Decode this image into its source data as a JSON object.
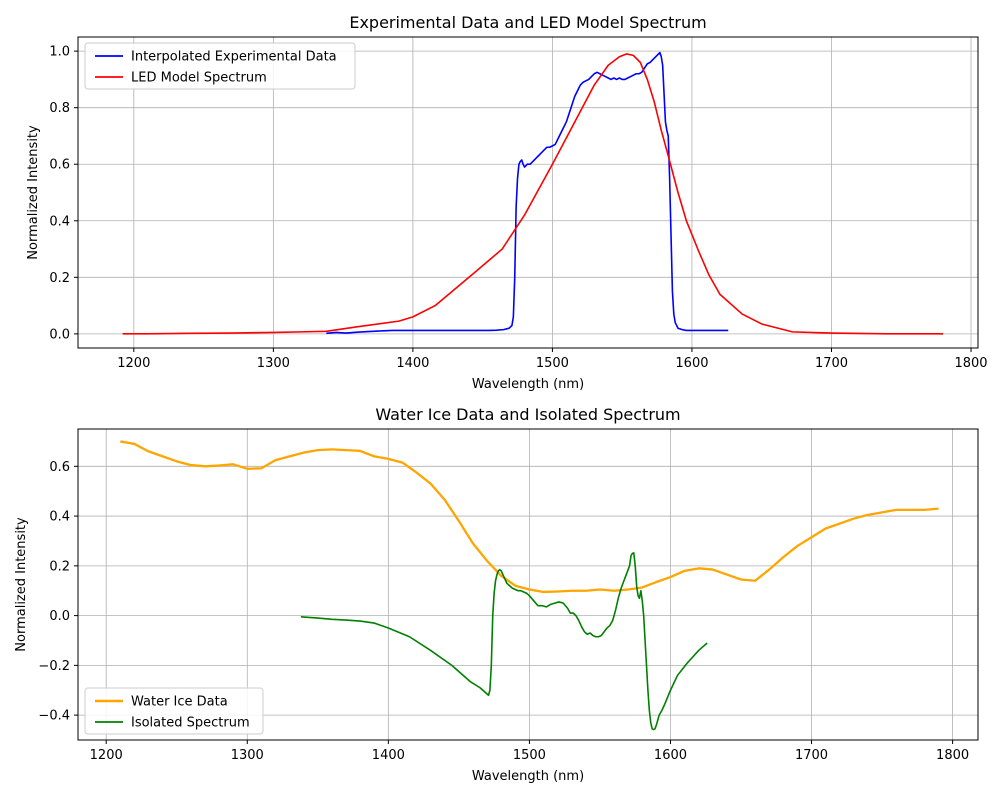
{
  "chart_data": [
    {
      "type": "line",
      "title": "Experimental Data and LED Model Spectrum",
      "xlabel": "Wavelength (nm)",
      "ylabel": "Normalized Intensity",
      "xlim": [
        1160,
        1805
      ],
      "ylim": [
        -0.05,
        1.05
      ],
      "xticks": [
        1200,
        1300,
        1400,
        1500,
        1600,
        1700,
        1800
      ],
      "yticks": [
        0.0,
        0.2,
        0.4,
        0.6,
        0.8,
        1.0
      ],
      "ytick_labels": [
        "0.0",
        "0.2",
        "0.4",
        "0.6",
        "0.8",
        "1.0"
      ],
      "grid": true,
      "legend_position": "upper-left",
      "series": [
        {
          "name": "Interpolated Experimental Data",
          "color": "#0000ff",
          "stroke_width": 1.6,
          "x": [
            1338,
            1345,
            1352,
            1360,
            1368,
            1375,
            1385,
            1400,
            1420,
            1440,
            1455,
            1460,
            1465,
            1469,
            1471,
            1472,
            1473,
            1474,
            1475,
            1476,
            1477,
            1478,
            1479,
            1480,
            1481,
            1482,
            1484,
            1486,
            1488,
            1490,
            1492,
            1494,
            1496,
            1498,
            1500,
            1502,
            1504,
            1506,
            1508,
            1510,
            1512,
            1514,
            1516,
            1518,
            1520,
            1522,
            1524,
            1526,
            1528,
            1530,
            1532,
            1534,
            1536,
            1538,
            1540,
            1542,
            1544,
            1546,
            1548,
            1550,
            1552,
            1554,
            1556,
            1558,
            1560,
            1562,
            1564,
            1566,
            1568,
            1570,
            1572,
            1574,
            1576,
            1577,
            1578,
            1579,
            1580,
            1581,
            1582,
            1583,
            1584,
            1585,
            1586,
            1587,
            1588,
            1590,
            1593,
            1596,
            1600,
            1610,
            1626
          ],
          "y": [
            0.002,
            0.005,
            0.003,
            0.006,
            0.008,
            0.01,
            0.012,
            0.012,
            0.012,
            0.012,
            0.012,
            0.013,
            0.015,
            0.02,
            0.03,
            0.06,
            0.2,
            0.45,
            0.55,
            0.6,
            0.61,
            0.615,
            0.6,
            0.59,
            0.595,
            0.6,
            0.6,
            0.61,
            0.62,
            0.63,
            0.64,
            0.65,
            0.66,
            0.66,
            0.665,
            0.67,
            0.69,
            0.71,
            0.73,
            0.75,
            0.78,
            0.81,
            0.84,
            0.86,
            0.88,
            0.89,
            0.895,
            0.9,
            0.91,
            0.92,
            0.925,
            0.92,
            0.915,
            0.91,
            0.905,
            0.9,
            0.905,
            0.9,
            0.905,
            0.9,
            0.9,
            0.905,
            0.91,
            0.915,
            0.92,
            0.92,
            0.925,
            0.94,
            0.955,
            0.96,
            0.97,
            0.98,
            0.99,
            0.995,
            0.98,
            0.95,
            0.85,
            0.75,
            0.72,
            0.7,
            0.55,
            0.35,
            0.15,
            0.07,
            0.04,
            0.02,
            0.015,
            0.012,
            0.012,
            0.012,
            0.012
          ]
        },
        {
          "name": "LED Model Spectrum",
          "color": "#ff0000",
          "stroke_width": 1.6,
          "x": [
            1192,
            1210,
            1240,
            1270,
            1300,
            1320,
            1338,
            1360,
            1390,
            1400,
            1416,
            1445,
            1464,
            1480,
            1500,
            1515,
            1530,
            1540,
            1548,
            1553,
            1558,
            1563,
            1568,
            1573,
            1578,
            1583,
            1590,
            1596,
            1605,
            1612,
            1620,
            1636,
            1650,
            1672,
            1700,
            1740,
            1780
          ],
          "y": [
            0.0,
            0.0,
            0.002,
            0.003,
            0.005,
            0.007,
            0.009,
            0.025,
            0.045,
            0.06,
            0.1,
            0.22,
            0.3,
            0.42,
            0.6,
            0.74,
            0.88,
            0.95,
            0.98,
            0.99,
            0.985,
            0.96,
            0.9,
            0.82,
            0.72,
            0.63,
            0.5,
            0.4,
            0.29,
            0.21,
            0.14,
            0.07,
            0.035,
            0.007,
            0.003,
            0.0,
            0.0
          ]
        }
      ]
    },
    {
      "type": "line",
      "title": "Water Ice Data and Isolated Spectrum",
      "xlabel": "Wavelength (nm)",
      "ylabel": "Normalized Intensity",
      "xlim": [
        1180,
        1818
      ],
      "ylim": [
        -0.5,
        0.75
      ],
      "xticks": [
        1200,
        1300,
        1400,
        1500,
        1600,
        1700,
        1800
      ],
      "yticks": [
        -0.4,
        -0.2,
        0.0,
        0.2,
        0.4,
        0.6
      ],
      "ytick_labels": [
        "−0.4",
        "−0.2",
        "0.0",
        "0.2",
        "0.4",
        "0.6"
      ],
      "grid": true,
      "legend_position": "lower-left",
      "series": [
        {
          "name": "Water Ice Data",
          "color": "#ffa500",
          "stroke_width": 2.3,
          "x": [
            1210,
            1220,
            1230,
            1240,
            1250,
            1260,
            1270,
            1280,
            1290,
            1300,
            1310,
            1320,
            1330,
            1340,
            1350,
            1360,
            1370,
            1380,
            1390,
            1400,
            1410,
            1420,
            1430,
            1440,
            1450,
            1460,
            1470,
            1480,
            1490,
            1500,
            1510,
            1520,
            1530,
            1540,
            1550,
            1560,
            1570,
            1580,
            1590,
            1600,
            1610,
            1620,
            1630,
            1640,
            1650,
            1660,
            1670,
            1680,
            1690,
            1700,
            1710,
            1720,
            1730,
            1740,
            1750,
            1760,
            1770,
            1780,
            1790
          ],
          "y": [
            0.7,
            0.69,
            0.66,
            0.64,
            0.62,
            0.605,
            0.6,
            0.603,
            0.608,
            0.59,
            0.592,
            0.625,
            0.64,
            0.655,
            0.665,
            0.668,
            0.665,
            0.662,
            0.64,
            0.63,
            0.615,
            0.575,
            0.53,
            0.465,
            0.38,
            0.29,
            0.22,
            0.16,
            0.12,
            0.105,
            0.095,
            0.097,
            0.1,
            0.1,
            0.105,
            0.1,
            0.105,
            0.113,
            0.135,
            0.155,
            0.18,
            0.19,
            0.185,
            0.165,
            0.145,
            0.14,
            0.185,
            0.235,
            0.28,
            0.315,
            0.35,
            0.37,
            0.39,
            0.405,
            0.415,
            0.425,
            0.425,
            0.425,
            0.43
          ]
        },
        {
          "name": "Isolated Spectrum",
          "color": "#008000",
          "stroke_width": 1.6,
          "x": [
            1338,
            1350,
            1360,
            1370,
            1380,
            1390,
            1400,
            1415,
            1430,
            1445,
            1458,
            1465,
            1469,
            1471,
            1472,
            1473,
            1474,
            1475,
            1476,
            1477,
            1478,
            1479,
            1480,
            1482,
            1484,
            1486,
            1488,
            1490,
            1492,
            1494,
            1496,
            1498,
            1500,
            1503,
            1506,
            1509,
            1512,
            1515,
            1518,
            1521,
            1524,
            1527,
            1529,
            1531,
            1533,
            1535,
            1537,
            1539,
            1541,
            1543,
            1545,
            1547,
            1549,
            1551,
            1553,
            1555,
            1557,
            1559,
            1561,
            1563,
            1565,
            1567,
            1569,
            1571,
            1572,
            1573,
            1574,
            1575,
            1576,
            1577,
            1578,
            1579,
            1580,
            1581,
            1582,
            1583,
            1584,
            1585,
            1586,
            1587,
            1588,
            1589,
            1590,
            1591,
            1592,
            1594,
            1596,
            1600,
            1605,
            1612,
            1620,
            1626
          ],
          "y": [
            -0.005,
            -0.01,
            -0.015,
            -0.018,
            -0.022,
            -0.03,
            -0.05,
            -0.085,
            -0.14,
            -0.2,
            -0.265,
            -0.29,
            -0.31,
            -0.32,
            -0.3,
            -0.2,
            0.0,
            0.09,
            0.14,
            0.165,
            0.18,
            0.185,
            0.18,
            0.155,
            0.13,
            0.12,
            0.11,
            0.105,
            0.1,
            0.1,
            0.095,
            0.09,
            0.08,
            0.06,
            0.04,
            0.04,
            0.035,
            0.045,
            0.05,
            0.055,
            0.05,
            0.03,
            0.01,
            0.01,
            0.0,
            -0.02,
            -0.045,
            -0.065,
            -0.075,
            -0.07,
            -0.08,
            -0.085,
            -0.085,
            -0.08,
            -0.065,
            -0.05,
            -0.04,
            -0.02,
            0.02,
            0.07,
            0.11,
            0.14,
            0.17,
            0.2,
            0.24,
            0.25,
            0.252,
            0.2,
            0.12,
            0.08,
            0.07,
            0.1,
            0.06,
            0.0,
            -0.1,
            -0.2,
            -0.3,
            -0.38,
            -0.43,
            -0.455,
            -0.458,
            -0.455,
            -0.44,
            -0.42,
            -0.4,
            -0.38,
            -0.355,
            -0.3,
            -0.24,
            -0.19,
            -0.14,
            -0.11
          ]
        }
      ]
    }
  ]
}
